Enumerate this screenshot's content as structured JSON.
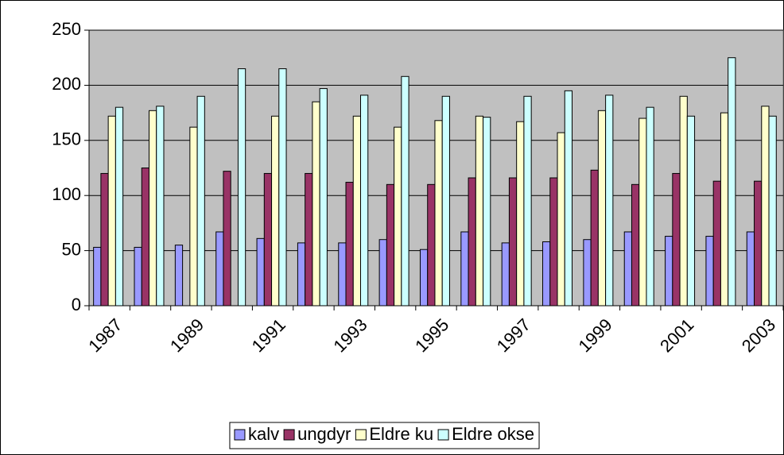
{
  "chart_data": {
    "type": "bar",
    "categories": [
      "1987",
      null,
      "1989",
      null,
      "1991",
      null,
      "1993",
      null,
      "1995",
      null,
      "1997",
      null,
      "1999",
      null,
      "2001",
      null,
      "2003"
    ],
    "series": [
      {
        "name": "kalv",
        "color": "#9999ff",
        "values": [
          53,
          53,
          55,
          67,
          61,
          57,
          57,
          60,
          51,
          67,
          57,
          58,
          60,
          67,
          63,
          63,
          67
        ]
      },
      {
        "name": "ungdyr",
        "color": "#993366",
        "values": [
          120,
          125,
          null,
          122,
          120,
          120,
          112,
          110,
          110,
          116,
          116,
          116,
          123,
          110,
          120,
          113,
          113
        ]
      },
      {
        "name": "Eldre ku",
        "color": "#ffffcc",
        "values": [
          172,
          177,
          162,
          null,
          172,
          185,
          172,
          162,
          168,
          172,
          167,
          157,
          177,
          170,
          190,
          175,
          181
        ]
      },
      {
        "name": "Eldre okse",
        "color": "#ccffff",
        "values": [
          180,
          181,
          190,
          215,
          215,
          197,
          191,
          208,
          190,
          171,
          190,
          195,
          191,
          180,
          172,
          225,
          172
        ]
      }
    ],
    "ylim": [
      0,
      250
    ],
    "yticks": [
      0,
      50,
      100,
      150,
      200,
      250
    ],
    "grid": true,
    "legend": "bottom",
    "plot_background": "#c0c0c0"
  }
}
